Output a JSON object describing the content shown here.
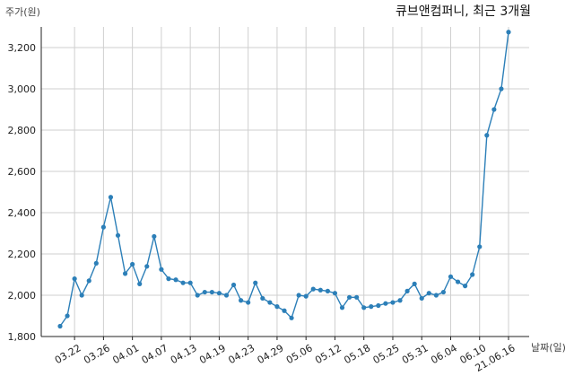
{
  "chart_data": {
    "type": "line",
    "title": "큐브앤컴퍼니, 최근 3개월",
    "ylabel": "주가(원)",
    "xlabel": "날짜(일)",
    "ylim": [
      1800,
      3300
    ],
    "yticks": [
      1800,
      2000,
      2200,
      2400,
      2600,
      2800,
      3000,
      3200
    ],
    "ytick_labels": [
      "1,800",
      "2,000",
      "2,200",
      "2,400",
      "2,600",
      "2,800",
      "3,000",
      "3,200"
    ],
    "grid": true,
    "xtick_labels": [
      "03.22",
      "03.26",
      "04.01",
      "04.07",
      "04.13",
      "04.19",
      "04.23",
      "04.29",
      "05.06",
      "05.12",
      "05.18",
      "05.25",
      "05.31",
      "06.04",
      "06.10",
      "21.06.16"
    ],
    "xtick_indices": [
      2,
      6,
      10,
      14,
      18,
      22,
      26,
      30,
      34,
      38,
      42,
      46,
      50,
      54,
      58,
      62
    ],
    "series": [
      {
        "values": [
          1850,
          1900,
          2080,
          2000,
          2070,
          2155,
          2330,
          2475,
          2290,
          2105,
          2150,
          2055,
          2140,
          2285,
          2125,
          2080,
          2075,
          2060,
          2060,
          2000,
          2015,
          2015,
          2010,
          2000,
          2050,
          1975,
          1965,
          2060,
          1985,
          1965,
          1945,
          1925,
          1890,
          2000,
          1995,
          2030,
          2025,
          2020,
          2010,
          1940,
          1990,
          1990,
          1940,
          1945,
          1950,
          1960,
          1965,
          1975,
          2020,
          2055,
          1985,
          2010,
          2000,
          2015,
          2090,
          2065,
          2045,
          2100,
          2235,
          2775,
          2900,
          3000,
          3275
        ]
      }
    ],
    "colors": {
      "line": "#2c7fb8",
      "grid": "#cfcfcf"
    }
  }
}
